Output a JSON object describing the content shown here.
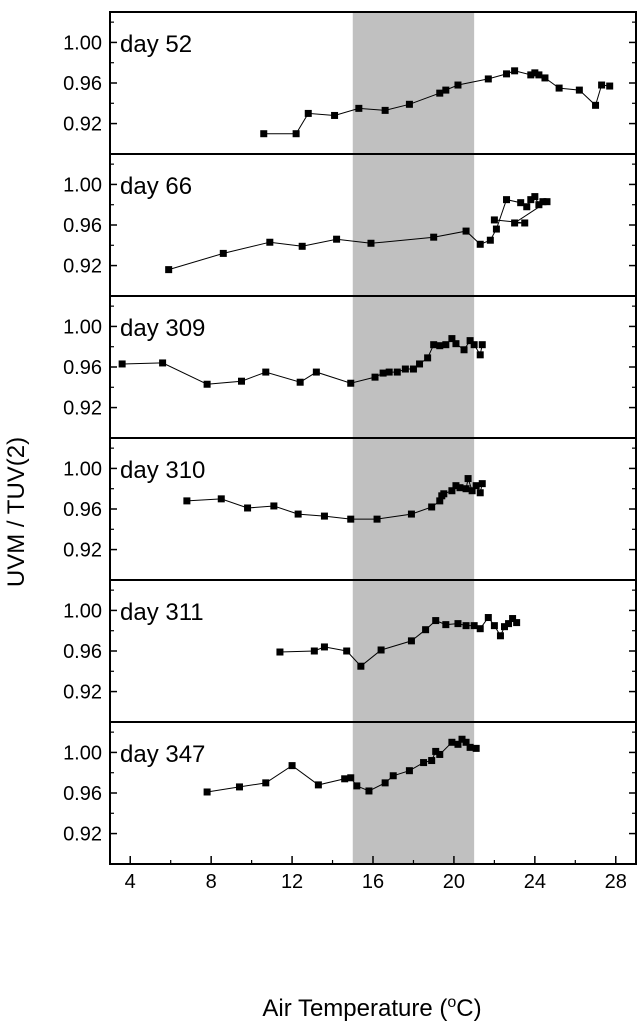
{
  "colors": {
    "band": "#c0c0c0",
    "marker": "#000000",
    "line": "#000000"
  },
  "chart_data": {
    "type": "line",
    "ylabel": "UVM / TUV(2)",
    "xlabel_text": "Air Temperature (",
    "xlabel_unit": "o",
    "xlabel_tail": "C)",
    "xlim": [
      3,
      29
    ],
    "xticks": [
      4,
      8,
      12,
      16,
      20,
      24,
      28
    ],
    "ylim": [
      0.89,
      1.03
    ],
    "yticks": [
      0.92,
      0.96,
      1.0
    ],
    "yticklabels": [
      "0.92",
      "0.96",
      "1.00"
    ],
    "shaded_band": [
      15,
      21
    ],
    "panels": [
      {
        "label": "day 52",
        "x": [
          10.6,
          12.2,
          12.8,
          14.1,
          15.3,
          16.6,
          17.8,
          19.3,
          19.6,
          20.2,
          21.7,
          22.6,
          23.0,
          23.8,
          24.0,
          24.2,
          24.5,
          25.2,
          26.2,
          27.0,
          27.3,
          27.7
        ],
        "y": [
          0.91,
          0.91,
          0.93,
          0.928,
          0.935,
          0.933,
          0.939,
          0.95,
          0.953,
          0.958,
          0.964,
          0.969,
          0.972,
          0.968,
          0.97,
          0.968,
          0.965,
          0.955,
          0.953,
          0.938,
          0.958,
          0.957
        ]
      },
      {
        "label": "day 66",
        "x": [
          5.9,
          8.6,
          10.9,
          12.5,
          14.2,
          15.9,
          19.0,
          20.6,
          21.3,
          21.8,
          22.1,
          22.6,
          23.3,
          23.6,
          23.8,
          24.0,
          24.2,
          24.4,
          24.6,
          23.0,
          23.5,
          22.0
        ],
        "y": [
          0.916,
          0.932,
          0.943,
          0.939,
          0.946,
          0.942,
          0.948,
          0.954,
          0.941,
          0.945,
          0.956,
          0.985,
          0.982,
          0.978,
          0.985,
          0.988,
          0.98,
          0.983,
          0.983,
          0.962,
          0.962,
          0.965
        ]
      },
      {
        "label": "day 309",
        "x": [
          3.6,
          5.6,
          7.8,
          9.5,
          10.7,
          12.4,
          13.2,
          14.9,
          16.1,
          16.5,
          16.8,
          17.2,
          17.6,
          18.0,
          18.3,
          18.7,
          19.0,
          19.3,
          19.6,
          19.9,
          20.1,
          20.5,
          20.8,
          21.0,
          21.3,
          21.4
        ],
        "y": [
          0.963,
          0.964,
          0.943,
          0.946,
          0.955,
          0.945,
          0.955,
          0.944,
          0.95,
          0.954,
          0.955,
          0.955,
          0.958,
          0.958,
          0.963,
          0.969,
          0.982,
          0.981,
          0.982,
          0.988,
          0.983,
          0.977,
          0.986,
          0.982,
          0.972,
          0.982
        ]
      },
      {
        "label": "day 310",
        "x": [
          6.8,
          8.5,
          9.8,
          11.1,
          12.3,
          13.6,
          14.9,
          16.2,
          17.9,
          18.9,
          19.3,
          19.4,
          19.5,
          19.9,
          20.1,
          20.3,
          20.6,
          20.7,
          20.9,
          21.1,
          21.3,
          21.4
        ],
        "y": [
          0.968,
          0.97,
          0.961,
          0.963,
          0.955,
          0.953,
          0.95,
          0.95,
          0.955,
          0.962,
          0.968,
          0.973,
          0.975,
          0.978,
          0.983,
          0.981,
          0.98,
          0.99,
          0.978,
          0.983,
          0.976,
          0.985
        ]
      },
      {
        "label": "day 311",
        "x": [
          11.4,
          13.1,
          13.6,
          14.7,
          15.4,
          16.4,
          17.9,
          18.6,
          19.1,
          19.6,
          20.2,
          20.6,
          21.0,
          21.3,
          21.7,
          22.0,
          22.3,
          22.5,
          22.7,
          22.9,
          23.1
        ],
        "y": [
          0.959,
          0.96,
          0.964,
          0.96,
          0.945,
          0.961,
          0.97,
          0.981,
          0.99,
          0.986,
          0.987,
          0.985,
          0.985,
          0.982,
          0.993,
          0.985,
          0.975,
          0.984,
          0.987,
          0.992,
          0.988
        ]
      },
      {
        "label": "day 347",
        "x": [
          7.8,
          9.4,
          10.7,
          12.0,
          13.3,
          14.6,
          14.9,
          15.2,
          15.8,
          16.6,
          17.0,
          17.8,
          18.5,
          18.9,
          19.1,
          19.3,
          19.9,
          20.2,
          20.4,
          20.6,
          20.8,
          21.1
        ],
        "y": [
          0.961,
          0.966,
          0.97,
          0.987,
          0.968,
          0.974,
          0.975,
          0.967,
          0.962,
          0.97,
          0.977,
          0.982,
          0.99,
          0.992,
          1.001,
          0.998,
          1.01,
          1.008,
          1.013,
          1.01,
          1.005,
          1.004
        ]
      }
    ]
  }
}
